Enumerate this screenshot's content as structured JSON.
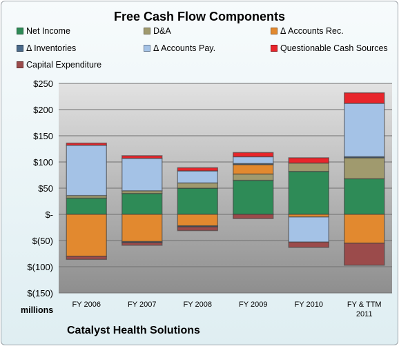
{
  "chart_data": {
    "type": "bar",
    "stacked": true,
    "title": "Free Cash Flow Components",
    "unit_label": "millions",
    "footer": "Catalyst Health Solutions",
    "categories": [
      "FY 2006",
      "FY 2007",
      "FY 2008",
      "FY 2009",
      "FY 2010",
      "FY & TTM 2011"
    ],
    "yticks": [
      "$250",
      "$200",
      "$150",
      "$100",
      "$50",
      "$-",
      "$(50)",
      "$(100)",
      "$(150)"
    ],
    "ylim": [
      -150,
      250
    ],
    "grid": true,
    "legend_position": "top",
    "series": [
      {
        "name": "Net Income",
        "color": "#2e8b57",
        "values": [
          31,
          40,
          50,
          65,
          82,
          68
        ]
      },
      {
        "name": "D&A",
        "color": "#a09a6e",
        "values": [
          5,
          5,
          10,
          12,
          16,
          40
        ]
      },
      {
        "name": "Δ Accounts Rec.",
        "color": "#e2892f",
        "values": [
          -80,
          -52,
          -22,
          18,
          -5,
          -55
        ]
      },
      {
        "name": "Δ Inventories",
        "color": "#4a6a8a",
        "values": [
          0,
          -2,
          -2,
          2,
          0,
          2
        ]
      },
      {
        "name": "Δ Accounts Pay.",
        "color": "#a4c2e6",
        "values": [
          96,
          62,
          23,
          13,
          -48,
          102
        ]
      },
      {
        "name": "Questionable Cash Sources",
        "color": "#e8252b",
        "values": [
          4,
          5,
          6,
          8,
          10,
          20
        ]
      },
      {
        "name": "Capital Expenditure",
        "color": "#9b4b4b",
        "values": [
          -6,
          -5,
          -7,
          -8,
          -10,
          -42
        ]
      }
    ]
  }
}
